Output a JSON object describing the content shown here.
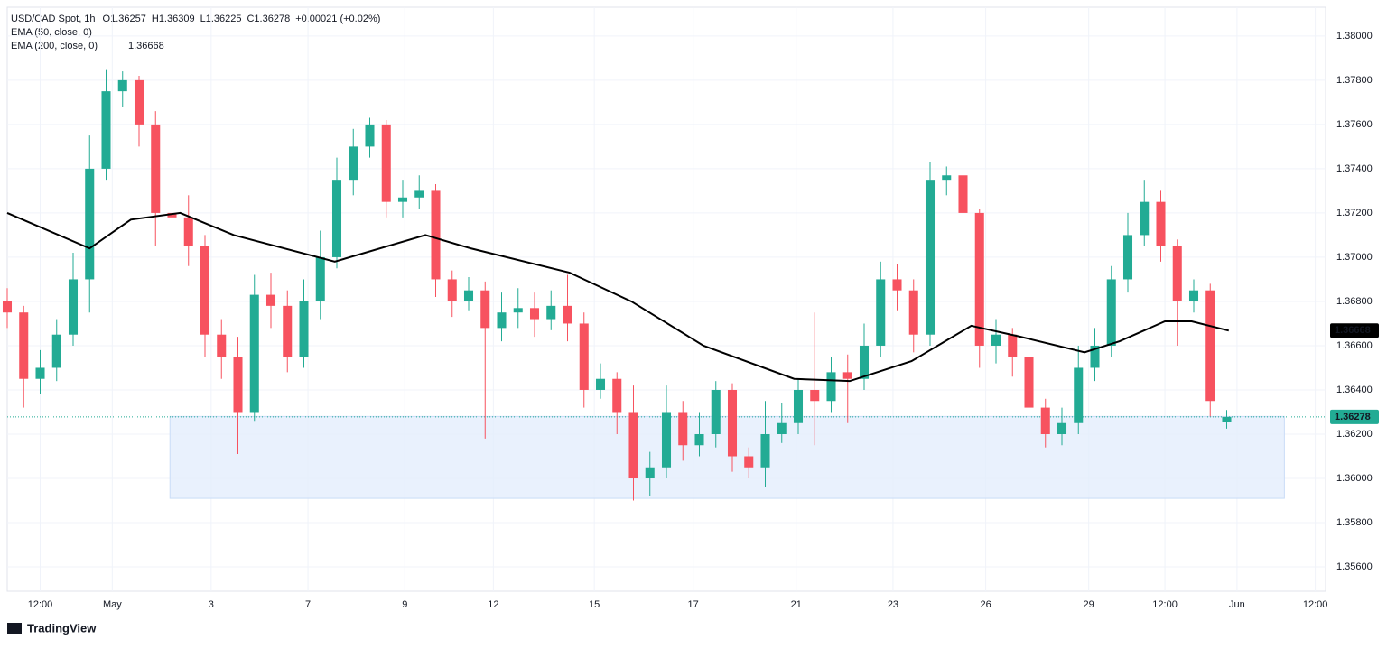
{
  "chart_data": {
    "type": "candlestick",
    "title": "USD/CAD Spot, 1h",
    "ohlc_labels": [
      "O1.36257",
      "H1.36309",
      "L1.36225",
      "C1.36278",
      "+0.00021 (+0.02%)"
    ],
    "indicator_labels": [
      "EMA (50, close, 0)",
      "EMA (200, close, 0)"
    ],
    "ema_value_label": "1.36668",
    "last_price": 1.36278,
    "last_price_label": "1.36278",
    "ema_last": 1.36668,
    "brand": "TradingView",
    "up_color": "#22ab94",
    "down_color": "#f7525f",
    "xlim": [
      0,
      640
    ],
    "ylim": [
      1.3549,
      1.3813
    ],
    "grid": true,
    "xticks": [
      {
        "value": 16,
        "label": "12:00"
      },
      {
        "value": 51,
        "label": "May"
      },
      {
        "value": 99,
        "label": "3"
      },
      {
        "value": 146,
        "label": "7"
      },
      {
        "value": 193,
        "label": "9"
      },
      {
        "value": 236,
        "label": "12"
      },
      {
        "value": 285,
        "label": "15"
      },
      {
        "value": 333,
        "label": "17"
      },
      {
        "value": 383,
        "label": "21"
      },
      {
        "value": 430,
        "label": "23"
      },
      {
        "value": 475,
        "label": "26"
      },
      {
        "value": 525,
        "label": "29"
      },
      {
        "value": 562,
        "label": "12:00"
      },
      {
        "value": 597,
        "label": "Jun"
      },
      {
        "value": 635,
        "label": "12:00"
      }
    ],
    "yticks": [
      {
        "value": 1.38,
        "label": "1.38000"
      },
      {
        "value": 1.378,
        "label": "1.37800"
      },
      {
        "value": 1.376,
        "label": "1.37600"
      },
      {
        "value": 1.374,
        "label": "1.37400"
      },
      {
        "value": 1.372,
        "label": "1.37200"
      },
      {
        "value": 1.37,
        "label": "1.37000"
      },
      {
        "value": 1.368,
        "label": "1.36800"
      },
      {
        "value": 1.366,
        "label": "1.36600"
      },
      {
        "value": 1.364,
        "label": "1.36400"
      },
      {
        "value": 1.362,
        "label": "1.36200"
      },
      {
        "value": 1.36,
        "label": "1.36000"
      },
      {
        "value": 1.358,
        "label": "1.35800"
      },
      {
        "value": 1.356,
        "label": "1.35600"
      }
    ],
    "zone": {
      "x": [
        79,
        620
      ],
      "y": [
        1.3628,
        1.3591
      ],
      "color": "#e3eefc"
    },
    "x": [
      0,
      8,
      16,
      24,
      32,
      40,
      48,
      56,
      64,
      72,
      80,
      88,
      96,
      104,
      112,
      120,
      128,
      136,
      144,
      152,
      160,
      168,
      176,
      184,
      192,
      200,
      208,
      216,
      224,
      232,
      240,
      248,
      256,
      264,
      272,
      280,
      288,
      296,
      304,
      312,
      320,
      328,
      336,
      344,
      352,
      360,
      368,
      376,
      384,
      392,
      400,
      408,
      416,
      424,
      432,
      440,
      448,
      456,
      464,
      472,
      480,
      488,
      496,
      504,
      512,
      520,
      528,
      536,
      544,
      552,
      560,
      568,
      576,
      584,
      592
    ],
    "open": [
      1.368,
      1.3675,
      1.3645,
      1.365,
      1.3665,
      1.369,
      1.374,
      1.3775,
      1.378,
      1.376,
      1.372,
      1.3718,
      1.3705,
      1.3665,
      1.3655,
      1.363,
      1.3683,
      1.3678,
      1.3655,
      1.368,
      1.37,
      1.3735,
      1.375,
      1.376,
      1.3725,
      1.3727,
      1.373,
      1.369,
      1.368,
      1.3685,
      1.3668,
      1.3675,
      1.3677,
      1.3672,
      1.3678,
      1.367,
      1.364,
      1.3645,
      1.363,
      1.36,
      1.3605,
      1.363,
      1.3615,
      1.362,
      1.364,
      1.361,
      1.3605,
      1.362,
      1.3625,
      1.364,
      1.3635,
      1.3648,
      1.3645,
      1.366,
      1.369,
      1.3685,
      1.3665,
      1.3735,
      1.3737,
      1.372,
      1.366,
      1.3665,
      1.3655,
      1.3632,
      1.362,
      1.3625,
      1.365,
      1.366,
      1.369,
      1.371,
      1.3725,
      1.3705,
      1.368,
      1.3685,
      1.36257
    ],
    "high": [
      1.3686,
      1.3678,
      1.3658,
      1.3672,
      1.3702,
      1.3755,
      1.3785,
      1.3784,
      1.3782,
      1.3766,
      1.373,
      1.3728,
      1.371,
      1.3672,
      1.3664,
      1.3692,
      1.3693,
      1.3685,
      1.369,
      1.3712,
      1.3745,
      1.3758,
      1.3763,
      1.3762,
      1.3735,
      1.3737,
      1.3733,
      1.3694,
      1.3691,
      1.3689,
      1.3684,
      1.3686,
      1.3684,
      1.3685,
      1.3692,
      1.3675,
      1.3652,
      1.3648,
      1.3642,
      1.3612,
      1.3642,
      1.3635,
      1.363,
      1.3644,
      1.3643,
      1.3614,
      1.3635,
      1.3634,
      1.3645,
      1.3675,
      1.3655,
      1.3656,
      1.367,
      1.3698,
      1.3697,
      1.369,
      1.3743,
      1.3741,
      1.374,
      1.3722,
      1.3672,
      1.3668,
      1.3658,
      1.3636,
      1.3632,
      1.366,
      1.3668,
      1.3696,
      1.372,
      1.3735,
      1.373,
      1.3708,
      1.369,
      1.3688,
      1.36309
    ],
    "low": [
      1.3668,
      1.3632,
      1.3638,
      1.3644,
      1.366,
      1.3675,
      1.3735,
      1.3768,
      1.375,
      1.3705,
      1.3708,
      1.3696,
      1.3655,
      1.3645,
      1.3611,
      1.3626,
      1.3668,
      1.3648,
      1.365,
      1.3672,
      1.3695,
      1.3728,
      1.3745,
      1.3718,
      1.3718,
      1.3722,
      1.3682,
      1.3673,
      1.3676,
      1.3618,
      1.3662,
      1.3668,
      1.3664,
      1.3667,
      1.3662,
      1.3632,
      1.3636,
      1.362,
      1.359,
      1.3592,
      1.36,
      1.3608,
      1.361,
      1.3614,
      1.3603,
      1.36,
      1.3596,
      1.3616,
      1.362,
      1.3615,
      1.363,
      1.3625,
      1.364,
      1.3655,
      1.3676,
      1.3657,
      1.366,
      1.3728,
      1.3712,
      1.365,
      1.3652,
      1.3646,
      1.3628,
      1.3614,
      1.3615,
      1.362,
      1.3644,
      1.3655,
      1.3684,
      1.3705,
      1.3698,
      1.366,
      1.3675,
      1.3628,
      1.36225
    ],
    "close": [
      1.3675,
      1.3645,
      1.365,
      1.3665,
      1.369,
      1.374,
      1.3775,
      1.378,
      1.376,
      1.372,
      1.3718,
      1.3705,
      1.3665,
      1.3655,
      1.363,
      1.3683,
      1.3678,
      1.3655,
      1.368,
      1.37,
      1.3735,
      1.375,
      1.376,
      1.3725,
      1.3727,
      1.373,
      1.369,
      1.368,
      1.3685,
      1.3668,
      1.3675,
      1.3677,
      1.3672,
      1.3678,
      1.367,
      1.364,
      1.3645,
      1.363,
      1.36,
      1.3605,
      1.363,
      1.3615,
      1.362,
      1.364,
      1.361,
      1.3605,
      1.362,
      1.3625,
      1.364,
      1.3635,
      1.3648,
      1.3645,
      1.366,
      1.369,
      1.3685,
      1.3665,
      1.3735,
      1.3737,
      1.372,
      1.366,
      1.3665,
      1.3655,
      1.3632,
      1.362,
      1.3625,
      1.365,
      1.366,
      1.369,
      1.371,
      1.3725,
      1.3705,
      1.368,
      1.3685,
      1.3635,
      1.36278
    ],
    "ema": {
      "color": "#000000",
      "x": [
        0,
        40,
        60,
        84,
        110,
        159,
        203,
        225,
        273,
        303,
        338,
        382,
        409,
        439,
        468,
        492,
        523,
        540,
        562,
        575,
        593
      ],
      "values": [
        1.372,
        1.3704,
        1.3717,
        1.372,
        1.371,
        1.3698,
        1.371,
        1.3704,
        1.3693,
        1.368,
        1.366,
        1.3645,
        1.3644,
        1.3653,
        1.3669,
        1.3664,
        1.3657,
        1.3662,
        1.3671,
        1.3671,
        1.36668
      ]
    }
  }
}
